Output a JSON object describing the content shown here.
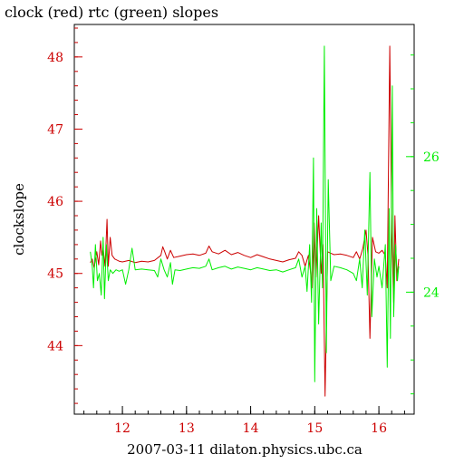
{
  "chart_data": {
    "type": "line",
    "title": "clock (red) rtc (green) slopes",
    "xlabel": "2007-03-11 dilaton.physics.ubc.ca",
    "ylabel": "clockslope",
    "xlim": [
      11.25,
      16.55
    ],
    "ylim": [
      43.05,
      48.45
    ],
    "y2lim": [
      22.2,
      27.95
    ],
    "x_ticks": [
      "12",
      "13",
      "14",
      "15",
      "16"
    ],
    "y_ticks": [
      "44",
      "45",
      "46",
      "47",
      "48"
    ],
    "y2_ticks": [
      "24",
      "26"
    ],
    "colors": {
      "red": "#cc0000",
      "green": "#00ee00"
    },
    "series": [
      {
        "axis": "left",
        "color": "#cc0000",
        "points": [
          [
            11.5,
            45.15
          ],
          [
            11.53,
            45.2
          ],
          [
            11.56,
            45.08
          ],
          [
            11.6,
            45.3
          ],
          [
            11.63,
            45.12
          ],
          [
            11.66,
            45.45
          ],
          [
            11.68,
            45.25
          ],
          [
            11.7,
            45.35
          ],
          [
            11.73,
            45.1
          ],
          [
            11.76,
            45.75
          ],
          [
            11.78,
            45.1
          ],
          [
            11.81,
            45.5
          ],
          [
            11.84,
            45.25
          ],
          [
            11.88,
            45.2
          ],
          [
            11.95,
            45.17
          ],
          [
            12.0,
            45.16
          ],
          [
            12.1,
            45.18
          ],
          [
            12.2,
            45.15
          ],
          [
            12.3,
            45.17
          ],
          [
            12.4,
            45.16
          ],
          [
            12.5,
            45.18
          ],
          [
            12.6,
            45.25
          ],
          [
            12.63,
            45.37
          ],
          [
            12.66,
            45.3
          ],
          [
            12.7,
            45.2
          ],
          [
            12.75,
            45.32
          ],
          [
            12.8,
            45.22
          ],
          [
            12.9,
            45.24
          ],
          [
            13.0,
            45.26
          ],
          [
            13.1,
            45.27
          ],
          [
            13.2,
            45.25
          ],
          [
            13.3,
            45.28
          ],
          [
            13.35,
            45.38
          ],
          [
            13.4,
            45.3
          ],
          [
            13.5,
            45.27
          ],
          [
            13.6,
            45.32
          ],
          [
            13.7,
            45.26
          ],
          [
            13.8,
            45.29
          ],
          [
            13.9,
            45.25
          ],
          [
            14.0,
            45.22
          ],
          [
            14.1,
            45.26
          ],
          [
            14.2,
            45.23
          ],
          [
            14.3,
            45.2
          ],
          [
            14.4,
            45.18
          ],
          [
            14.5,
            45.16
          ],
          [
            14.6,
            45.19
          ],
          [
            14.7,
            45.21
          ],
          [
            14.75,
            45.3
          ],
          [
            14.8,
            45.25
          ],
          [
            14.85,
            45.1
          ],
          [
            14.9,
            45.25
          ],
          [
            14.93,
            45.05
          ],
          [
            14.96,
            44.8
          ],
          [
            14.99,
            45.7
          ],
          [
            15.02,
            44.95
          ],
          [
            15.06,
            45.8
          ],
          [
            15.1,
            45.0
          ],
          [
            15.13,
            45.4
          ],
          [
            15.16,
            43.3
          ],
          [
            15.2,
            45.3
          ],
          [
            15.25,
            45.28
          ],
          [
            15.3,
            45.26
          ],
          [
            15.4,
            45.27
          ],
          [
            15.5,
            45.25
          ],
          [
            15.6,
            45.22
          ],
          [
            15.65,
            45.3
          ],
          [
            15.7,
            45.2
          ],
          [
            15.75,
            45.35
          ],
          [
            15.8,
            45.6
          ],
          [
            15.83,
            45.25
          ],
          [
            15.86,
            44.1
          ],
          [
            15.9,
            45.5
          ],
          [
            15.95,
            45.3
          ],
          [
            16.0,
            45.28
          ],
          [
            16.05,
            45.32
          ],
          [
            16.1,
            45.25
          ],
          [
            16.13,
            44.8
          ],
          [
            16.17,
            48.15
          ],
          [
            16.2,
            45.6
          ],
          [
            16.23,
            44.6
          ],
          [
            16.25,
            45.8
          ],
          [
            16.28,
            44.9
          ],
          [
            16.31,
            45.2
          ]
        ]
      },
      {
        "axis": "left",
        "color": "#00ee00",
        "points": [
          [
            11.5,
            45.3
          ],
          [
            11.53,
            45.1
          ],
          [
            11.55,
            44.8
          ],
          [
            11.58,
            45.4
          ],
          [
            11.61,
            44.9
          ],
          [
            11.64,
            45.0
          ],
          [
            11.67,
            44.7
          ],
          [
            11.7,
            45.5
          ],
          [
            11.72,
            44.65
          ],
          [
            11.75,
            45.4
          ],
          [
            11.78,
            44.9
          ],
          [
            11.81,
            45.05
          ],
          [
            11.85,
            45.0
          ],
          [
            11.9,
            45.05
          ],
          [
            11.95,
            45.03
          ],
          [
            12.0,
            45.05
          ],
          [
            12.05,
            44.85
          ],
          [
            12.1,
            45.05
          ],
          [
            12.15,
            45.35
          ],
          [
            12.2,
            45.05
          ],
          [
            12.3,
            45.06
          ],
          [
            12.4,
            45.05
          ],
          [
            12.5,
            45.04
          ],
          [
            12.55,
            44.95
          ],
          [
            12.6,
            45.2
          ],
          [
            12.65,
            45.05
          ],
          [
            12.7,
            44.95
          ],
          [
            12.75,
            45.15
          ],
          [
            12.78,
            44.85
          ],
          [
            12.82,
            45.05
          ],
          [
            12.9,
            45.04
          ],
          [
            13.0,
            45.06
          ],
          [
            13.1,
            45.08
          ],
          [
            13.2,
            45.07
          ],
          [
            13.3,
            45.1
          ],
          [
            13.35,
            45.2
          ],
          [
            13.4,
            45.05
          ],
          [
            13.5,
            45.08
          ],
          [
            13.6,
            45.1
          ],
          [
            13.7,
            45.06
          ],
          [
            13.8,
            45.09
          ],
          [
            13.9,
            45.07
          ],
          [
            14.0,
            45.05
          ],
          [
            14.1,
            45.08
          ],
          [
            14.2,
            45.06
          ],
          [
            14.3,
            45.04
          ],
          [
            14.4,
            45.05
          ],
          [
            14.5,
            45.02
          ],
          [
            14.6,
            45.05
          ],
          [
            14.7,
            45.08
          ],
          [
            14.75,
            45.2
          ],
          [
            14.8,
            44.95
          ],
          [
            14.85,
            45.1
          ],
          [
            14.88,
            44.75
          ],
          [
            14.92,
            45.4
          ],
          [
            14.95,
            44.6
          ],
          [
            14.98,
            46.6
          ],
          [
            15.0,
            43.5
          ],
          [
            15.03,
            45.9
          ],
          [
            15.06,
            44.3
          ],
          [
            15.1,
            45.7
          ],
          [
            15.12,
            44.8
          ],
          [
            15.15,
            48.15
          ],
          [
            15.18,
            43.9
          ],
          [
            15.21,
            46.3
          ],
          [
            15.25,
            44.9
          ],
          [
            15.3,
            45.1
          ],
          [
            15.4,
            45.08
          ],
          [
            15.5,
            45.05
          ],
          [
            15.6,
            45.0
          ],
          [
            15.65,
            44.9
          ],
          [
            15.7,
            45.2
          ],
          [
            15.74,
            44.8
          ],
          [
            15.78,
            45.6
          ],
          [
            15.82,
            44.7
          ],
          [
            15.86,
            46.4
          ],
          [
            15.89,
            44.4
          ],
          [
            15.93,
            45.2
          ],
          [
            15.97,
            44.95
          ],
          [
            16.0,
            45.1
          ],
          [
            16.05,
            44.8
          ],
          [
            16.1,
            45.4
          ],
          [
            16.13,
            43.7
          ],
          [
            16.16,
            45.9
          ],
          [
            16.18,
            44.1
          ],
          [
            16.21,
            47.6
          ],
          [
            16.23,
            44.4
          ],
          [
            16.26,
            45.4
          ],
          [
            16.29,
            44.9
          ],
          [
            16.31,
            45.1
          ]
        ]
      }
    ]
  }
}
